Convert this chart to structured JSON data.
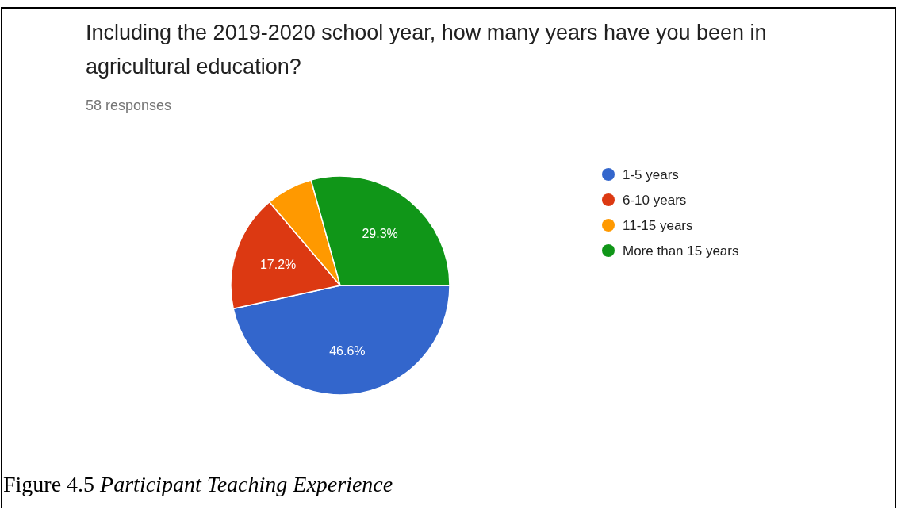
{
  "chart_data": {
    "type": "pie",
    "title": "Including the 2019-2020 school year, how many years have you been in agricultural education?",
    "subtitle": "58 responses",
    "categories": [
      "1-5 years",
      "6-10 years",
      "11-15 years",
      "More than 15 years"
    ],
    "values": [
      46.6,
      17.2,
      6.9,
      29.3
    ],
    "colors": [
      "#3366cc",
      "#dc3912",
      "#ff9900",
      "#109618"
    ],
    "value_labels": [
      "46.6%",
      "17.2%",
      null,
      "29.3%"
    ],
    "legend": "right",
    "annotations": [
      "Figure 4.5",
      "Participant Teaching Experience"
    ]
  }
}
